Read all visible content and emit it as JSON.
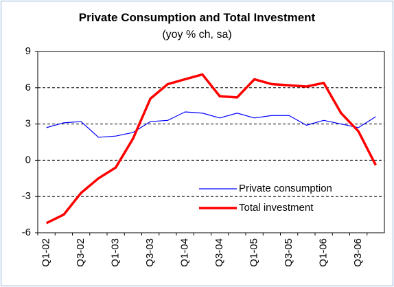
{
  "chart_data": {
    "type": "line",
    "title": "Private Consumption and Total Investment",
    "subtitle": "(yoy % ch, sa)",
    "categories": [
      "Q1-02",
      null,
      "Q3-02",
      null,
      "Q1-03",
      null,
      "Q3-03",
      null,
      "Q1-04",
      null,
      "Q3-04",
      null,
      "Q1-05",
      null,
      "Q3-05",
      null,
      "Q1-06",
      null,
      "Q3-06",
      null
    ],
    "series": [
      {
        "name": "Private consumption",
        "color": "#0000ff",
        "values": [
          2.7,
          3.1,
          3.2,
          1.9,
          2.0,
          2.3,
          3.2,
          3.3,
          4.0,
          3.9,
          3.5,
          3.9,
          3.5,
          3.7,
          3.7,
          2.9,
          3.3,
          3.0,
          2.7,
          3.6
        ]
      },
      {
        "name": "Total investment",
        "color": "#ff0000",
        "values": [
          -5.2,
          -4.5,
          -2.7,
          -1.5,
          -0.6,
          1.8,
          5.1,
          6.3,
          6.7,
          7.1,
          5.3,
          5.2,
          6.7,
          6.3,
          6.2,
          6.1,
          6.4,
          3.9,
          2.4,
          -0.4
        ]
      }
    ],
    "ylim": [
      -6,
      9
    ],
    "yticks": [
      -6,
      -3,
      0,
      3,
      6,
      9
    ],
    "grid": true,
    "legend": "lower right"
  }
}
